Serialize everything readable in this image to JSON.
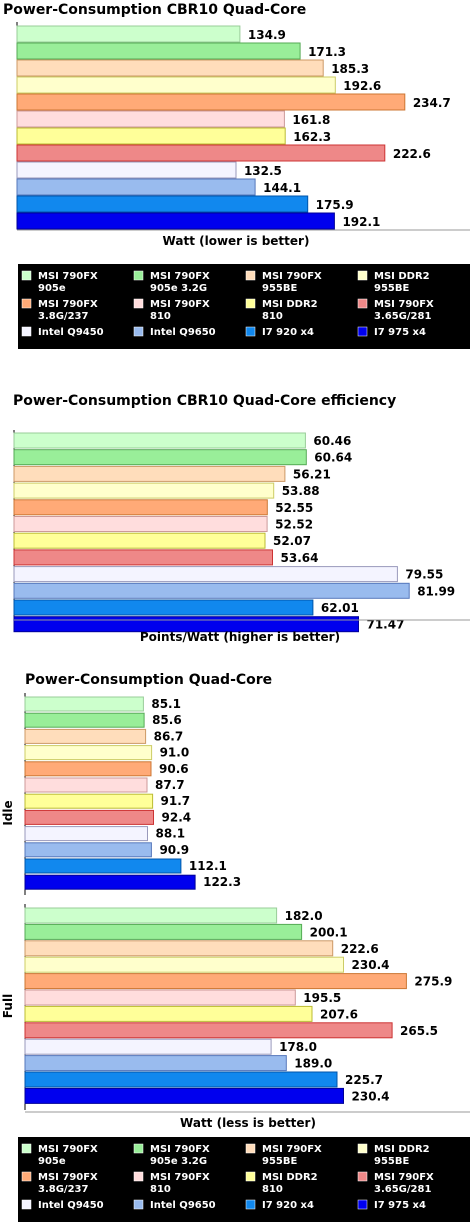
{
  "palette": [
    {
      "fill": "#ccffcc",
      "stroke": "#99cc99"
    },
    {
      "fill": "#99ee99",
      "stroke": "#55aa55"
    },
    {
      "fill": "#ffddbb",
      "stroke": "#cc9966"
    },
    {
      "fill": "#ffffcc",
      "stroke": "#cccc66"
    },
    {
      "fill": "#ffaa77",
      "stroke": "#cc7733"
    },
    {
      "fill": "#ffdddd",
      "stroke": "#cc9999"
    },
    {
      "fill": "#ffff99",
      "stroke": "#bbbb33"
    },
    {
      "fill": "#ee8888",
      "stroke": "#cc3333"
    },
    {
      "fill": "#f4f4ff",
      "stroke": "#9999bb"
    },
    {
      "fill": "#99bbee",
      "stroke": "#5577bb"
    },
    {
      "fill": "#1188ee",
      "stroke": "#0055aa"
    },
    {
      "fill": "#0000ee",
      "stroke": "#000099"
    }
  ],
  "legend_labels": [
    [
      "MSI 790FX",
      "905e"
    ],
    [
      "MSI 790FX",
      "905e 3.2G"
    ],
    [
      "MSI 790FX",
      "955BE"
    ],
    [
      "MSI DDR2",
      "955BE"
    ],
    [
      "MSI 790FX",
      "3.8G/237"
    ],
    [
      "MSI 790FX",
      "810"
    ],
    [
      "MSI DDR2",
      "810"
    ],
    [
      "MSI 790FX",
      "3.65G/281"
    ],
    [
      "Intel Q9450"
    ],
    [
      "Intel Q9650"
    ],
    [
      "I7 920 x4"
    ],
    [
      "I7 975 x4"
    ]
  ],
  "chart_data": [
    {
      "type": "bar",
      "title": "Power-Consumption CBR10 Quad-Core",
      "xlabel": "Watt (lower is better)",
      "values": [
        134.9,
        171.3,
        185.3,
        192.6,
        234.7,
        161.8,
        162.3,
        222.6,
        132.5,
        144.1,
        175.9,
        192.1
      ],
      "value_labels": [
        "134.9",
        "171.3",
        "185.3",
        "192.6",
        "234.7",
        "161.8",
        "162.3",
        "222.6",
        "132.5",
        "144.1",
        "175.9",
        "192.1"
      ],
      "legend": "bottom"
    },
    {
      "type": "bar",
      "title": "Power-Consumption CBR10 Quad-Core efficiency",
      "xlabel": "Points/Watt (higher is better)",
      "values": [
        60.46,
        60.64,
        56.21,
        53.88,
        52.55,
        52.52,
        52.07,
        53.64,
        79.55,
        81.99,
        62.01,
        71.47
      ],
      "value_labels": [
        "60.46",
        "60.64",
        "56.21",
        "53.88",
        "52.55",
        "52.52",
        "52.07",
        "53.64",
        "79.55",
        "81.99",
        "62.01",
        "71.47"
      ]
    },
    {
      "type": "bar",
      "title": "Power-Consumption Quad-Core",
      "xlabel": "Watt (less is better)",
      "groups": [
        {
          "name": "Idle",
          "values": [
            85.1,
            85.6,
            86.7,
            91.0,
            90.6,
            87.7,
            91.7,
            92.4,
            88.1,
            90.9,
            112.1,
            122.3
          ],
          "value_labels": [
            "85.1",
            "85.6",
            "86.7",
            "91.0",
            "90.6",
            "87.7",
            "91.7",
            "92.4",
            "88.1",
            "90.9",
            "112.1",
            "122.3"
          ]
        },
        {
          "name": "Full",
          "values": [
            182.0,
            200.1,
            222.6,
            230.4,
            275.9,
            195.5,
            207.6,
            265.5,
            178.0,
            189.0,
            225.7,
            230.4
          ],
          "value_labels": [
            "182.0",
            "200.1",
            "222.6",
            "230.4",
            "275.9",
            "195.5",
            "207.6",
            "265.5",
            "178.0",
            "189.0",
            "225.7",
            "230.4"
          ]
        }
      ],
      "legend": "bottom"
    }
  ]
}
